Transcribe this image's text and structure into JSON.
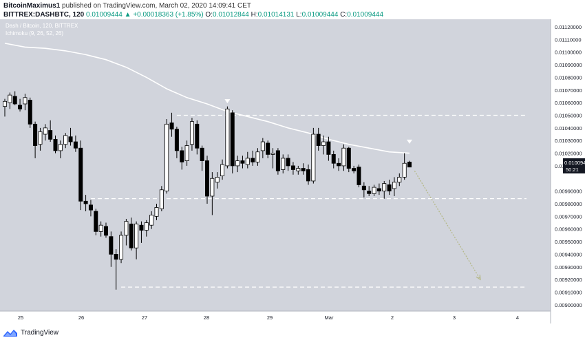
{
  "header": {
    "author": "BitcoinMaximus1",
    "published_text": "published on TradingView.com, March 02, 2020 14:09:41 CET",
    "exchange_symbol": "BITTREX:DASHBTC, 120",
    "last": "0.01009444",
    "change": "▲ +0.00018363 (+1.85%)",
    "o_label": "O:",
    "o_value": "0.01012844",
    "h_label": "H:",
    "h_value": "0.01014131",
    "l_label": "L:",
    "l_value": "0.01009444",
    "c_label": "C:",
    "c_value": "0.01009444"
  },
  "legend": {
    "symbol_line": "Dash / Bitcoin, 120, BITTREX",
    "indicator_line": "Ichimoku (9, 26, 52, 26)"
  },
  "price_badge": {
    "price": "0.01009444",
    "countdown": "50:21"
  },
  "footer": {
    "brand": "TradingView"
  },
  "colors": {
    "background": "#d1d4dc",
    "candle_up_fill": "#ffffff",
    "candle_down_fill": "#000000",
    "ma_line": "#ffffff",
    "dashed_lines": "#ffffff",
    "arrow": "#b5b98a"
  },
  "chart_data": {
    "type": "candlestick",
    "title": "",
    "xlabel": "",
    "ylabel": "",
    "x_ticks": [
      "25",
      "26",
      "27",
      "28",
      "29",
      "Mar",
      "2",
      "3",
      "4"
    ],
    "y_ticks": [
      "0.01120000",
      "0.01110000",
      "0.01100000",
      "0.01090000",
      "0.01080000",
      "0.01070000",
      "0.01060000",
      "0.01050000",
      "0.01040000",
      "0.01030000",
      "0.01020000",
      "0.01010000",
      "0.00990000",
      "0.00980000",
      "0.00970000",
      "0.00960000",
      "0.00950000",
      "0.00940000",
      "0.00930000",
      "0.00920000",
      "0.00910000",
      "0.00900000"
    ],
    "ylim": [
      0.00895,
      0.01126
    ],
    "grid": false,
    "candles": [
      {
        "o": 0.01057,
        "h": 0.01063,
        "l": 0.01049,
        "c": 0.01061
      },
      {
        "o": 0.0106,
        "h": 0.01068,
        "l": 0.01055,
        "c": 0.01066
      },
      {
        "o": 0.01065,
        "h": 0.01069,
        "l": 0.01058,
        "c": 0.01059
      },
      {
        "o": 0.01058,
        "h": 0.01063,
        "l": 0.01053,
        "c": 0.01055
      },
      {
        "o": 0.01059,
        "h": 0.01067,
        "l": 0.01054,
        "c": 0.01064
      },
      {
        "o": 0.01062,
        "h": 0.01064,
        "l": 0.0104,
        "c": 0.01043
      },
      {
        "o": 0.01043,
        "h": 0.01045,
        "l": 0.01016,
        "c": 0.01026
      },
      {
        "o": 0.01027,
        "h": 0.0104,
        "l": 0.01022,
        "c": 0.01037
      },
      {
        "o": 0.01035,
        "h": 0.01043,
        "l": 0.0103,
        "c": 0.0104
      },
      {
        "o": 0.01038,
        "h": 0.01046,
        "l": 0.01029,
        "c": 0.01031
      },
      {
        "o": 0.01031,
        "h": 0.01034,
        "l": 0.0102,
        "c": 0.01022
      },
      {
        "o": 0.01022,
        "h": 0.0103,
        "l": 0.01016,
        "c": 0.01027
      },
      {
        "o": 0.01027,
        "h": 0.01036,
        "l": 0.01024,
        "c": 0.01034
      },
      {
        "o": 0.01033,
        "h": 0.0104,
        "l": 0.01026,
        "c": 0.01029
      },
      {
        "o": 0.01029,
        "h": 0.01034,
        "l": 0.01021,
        "c": 0.01024
      },
      {
        "o": 0.01024,
        "h": 0.0103,
        "l": 0.00975,
        "c": 0.00982
      },
      {
        "o": 0.00982,
        "h": 0.00987,
        "l": 0.00974,
        "c": 0.0098
      },
      {
        "o": 0.00979,
        "h": 0.00983,
        "l": 0.0097,
        "c": 0.00975
      },
      {
        "o": 0.00974,
        "h": 0.00976,
        "l": 0.00955,
        "c": 0.00958
      },
      {
        "o": 0.00958,
        "h": 0.00966,
        "l": 0.00954,
        "c": 0.00963
      },
      {
        "o": 0.00962,
        "h": 0.00965,
        "l": 0.00953,
        "c": 0.00955
      },
      {
        "o": 0.00954,
        "h": 0.00958,
        "l": 0.0093,
        "c": 0.0094
      },
      {
        "o": 0.0094,
        "h": 0.00944,
        "l": 0.00912,
        "c": 0.00936
      },
      {
        "o": 0.00936,
        "h": 0.00958,
        "l": 0.00933,
        "c": 0.00955
      },
      {
        "o": 0.00955,
        "h": 0.00968,
        "l": 0.00947,
        "c": 0.00966
      },
      {
        "o": 0.00964,
        "h": 0.00969,
        "l": 0.00943,
        "c": 0.00945
      },
      {
        "o": 0.00945,
        "h": 0.00966,
        "l": 0.00936,
        "c": 0.00964
      },
      {
        "o": 0.00963,
        "h": 0.00966,
        "l": 0.00949,
        "c": 0.00959
      },
      {
        "o": 0.00959,
        "h": 0.00967,
        "l": 0.00954,
        "c": 0.00965
      },
      {
        "o": 0.00963,
        "h": 0.00974,
        "l": 0.0096,
        "c": 0.00971
      },
      {
        "o": 0.0097,
        "h": 0.0098,
        "l": 0.00967,
        "c": 0.00977
      },
      {
        "o": 0.00976,
        "h": 0.00994,
        "l": 0.00974,
        "c": 0.00991
      },
      {
        "o": 0.0099,
        "h": 0.01047,
        "l": 0.00988,
        "c": 0.01043
      },
      {
        "o": 0.01044,
        "h": 0.01052,
        "l": 0.01033,
        "c": 0.01039
      },
      {
        "o": 0.01039,
        "h": 0.01041,
        "l": 0.01016,
        "c": 0.01022
      },
      {
        "o": 0.01022,
        "h": 0.01025,
        "l": 0.01007,
        "c": 0.01013
      },
      {
        "o": 0.01014,
        "h": 0.0103,
        "l": 0.0101,
        "c": 0.01026
      },
      {
        "o": 0.01027,
        "h": 0.01048,
        "l": 0.01022,
        "c": 0.01045
      },
      {
        "o": 0.01043,
        "h": 0.01046,
        "l": 0.01019,
        "c": 0.01024
      },
      {
        "o": 0.01024,
        "h": 0.01026,
        "l": 0.01006,
        "c": 0.01014
      },
      {
        "o": 0.01014,
        "h": 0.01018,
        "l": 0.0098,
        "c": 0.00986
      },
      {
        "o": 0.00986,
        "h": 0.01005,
        "l": 0.00971,
        "c": 0.01
      },
      {
        "o": 0.00997,
        "h": 0.01005,
        "l": 0.00992,
        "c": 0.01001
      },
      {
        "o": 0.01002,
        "h": 0.01015,
        "l": 0.00999,
        "c": 0.01011
      },
      {
        "o": 0.0101,
        "h": 0.01057,
        "l": 0.01008,
        "c": 0.01055
      },
      {
        "o": 0.01052,
        "h": 0.01054,
        "l": 0.01004,
        "c": 0.0101
      },
      {
        "o": 0.0101,
        "h": 0.01018,
        "l": 0.01005,
        "c": 0.01014
      },
      {
        "o": 0.01014,
        "h": 0.01018,
        "l": 0.01008,
        "c": 0.01012
      },
      {
        "o": 0.01011,
        "h": 0.01021,
        "l": 0.01008,
        "c": 0.01016
      },
      {
        "o": 0.01016,
        "h": 0.01022,
        "l": 0.0101,
        "c": 0.01013
      },
      {
        "o": 0.01013,
        "h": 0.01024,
        "l": 0.0101,
        "c": 0.01021
      },
      {
        "o": 0.01022,
        "h": 0.01032,
        "l": 0.01016,
        "c": 0.01029
      },
      {
        "o": 0.01028,
        "h": 0.0103,
        "l": 0.01016,
        "c": 0.01019
      },
      {
        "o": 0.01019,
        "h": 0.01024,
        "l": 0.01008,
        "c": 0.0102
      },
      {
        "o": 0.01022,
        "h": 0.01024,
        "l": 0.01003,
        "c": 0.01006
      },
      {
        "o": 0.01007,
        "h": 0.01019,
        "l": 0.01004,
        "c": 0.01016
      },
      {
        "o": 0.01016,
        "h": 0.01019,
        "l": 0.01006,
        "c": 0.0101
      },
      {
        "o": 0.0101,
        "h": 0.01013,
        "l": 0.01003,
        "c": 0.01007
      },
      {
        "o": 0.01006,
        "h": 0.0101,
        "l": 0.01003,
        "c": 0.01008
      },
      {
        "o": 0.01008,
        "h": 0.01012,
        "l": 0.01003,
        "c": 0.01006
      },
      {
        "o": 0.01007,
        "h": 0.01011,
        "l": 0.00995,
        "c": 0.00998
      },
      {
        "o": 0.00998,
        "h": 0.0104,
        "l": 0.00996,
        "c": 0.01035
      },
      {
        "o": 0.01035,
        "h": 0.0104,
        "l": 0.01022,
        "c": 0.01026
      },
      {
        "o": 0.01026,
        "h": 0.01034,
        "l": 0.01019,
        "c": 0.01029
      },
      {
        "o": 0.01029,
        "h": 0.01033,
        "l": 0.01014,
        "c": 0.01019
      },
      {
        "o": 0.01019,
        "h": 0.01022,
        "l": 0.01008,
        "c": 0.01012
      },
      {
        "o": 0.01012,
        "h": 0.01016,
        "l": 0.01006,
        "c": 0.0101
      },
      {
        "o": 0.0101,
        "h": 0.01027,
        "l": 0.01006,
        "c": 0.01024
      },
      {
        "o": 0.01024,
        "h": 0.01025,
        "l": 0.01005,
        "c": 0.01008
      },
      {
        "o": 0.01008,
        "h": 0.0101,
        "l": 0.01004,
        "c": 0.01006
      },
      {
        "o": 0.01009,
        "h": 0.01011,
        "l": 0.00993,
        "c": 0.00995
      },
      {
        "o": 0.00994,
        "h": 0.00997,
        "l": 0.00985,
        "c": 0.00991
      },
      {
        "o": 0.0099,
        "h": 0.00994,
        "l": 0.00986,
        "c": 0.00988
      },
      {
        "o": 0.00988,
        "h": 0.00995,
        "l": 0.00986,
        "c": 0.00993
      },
      {
        "o": 0.00992,
        "h": 0.00996,
        "l": 0.00987,
        "c": 0.0099
      },
      {
        "o": 0.0099,
        "h": 0.00998,
        "l": 0.00984,
        "c": 0.00996
      },
      {
        "o": 0.00995,
        "h": 0.00999,
        "l": 0.00987,
        "c": 0.0099
      },
      {
        "o": 0.00992,
        "h": 0.01001,
        "l": 0.00986,
        "c": 0.00997
      },
      {
        "o": 0.00997,
        "h": 0.01004,
        "l": 0.00994,
        "c": 0.01001
      },
      {
        "o": 0.01001,
        "h": 0.0102,
        "l": 0.00999,
        "c": 0.01012
      },
      {
        "o": 0.01013,
        "h": 0.01014,
        "l": 0.01009,
        "c": 0.01009
      }
    ],
    "moving_average": [
      [
        0,
        0.01107
      ],
      [
        4,
        0.01104
      ],
      [
        8,
        0.01103
      ],
      [
        12,
        0.01101
      ],
      [
        16,
        0.01098
      ],
      [
        20,
        0.01094
      ],
      [
        24,
        0.01088
      ],
      [
        28,
        0.0108
      ],
      [
        32,
        0.01071
      ],
      [
        36,
        0.01064
      ],
      [
        40,
        0.01059
      ],
      [
        44,
        0.01053
      ],
      [
        48,
        0.01049
      ],
      [
        52,
        0.01045
      ],
      [
        56,
        0.0104
      ],
      [
        60,
        0.01036
      ],
      [
        64,
        0.01031
      ],
      [
        68,
        0.01027
      ],
      [
        72,
        0.01024
      ],
      [
        76,
        0.01021
      ],
      [
        80,
        0.0102
      ]
    ],
    "support_resistance_levels": [
      {
        "price": 0.0105,
        "from": 34,
        "to": 110
      },
      {
        "price": 0.00984,
        "from": 17,
        "to": 110
      },
      {
        "price": 0.00914,
        "from": 23,
        "to": 110
      }
    ],
    "markers": [
      {
        "type": "triangle-down",
        "at": 44,
        "price": 0.0106
      },
      {
        "type": "triangle-down",
        "at": 80,
        "price": 0.01028
      }
    ],
    "projection_arrow": {
      "from": [
        81,
        0.01006
      ],
      "to": [
        94,
        0.0092
      ]
    }
  }
}
